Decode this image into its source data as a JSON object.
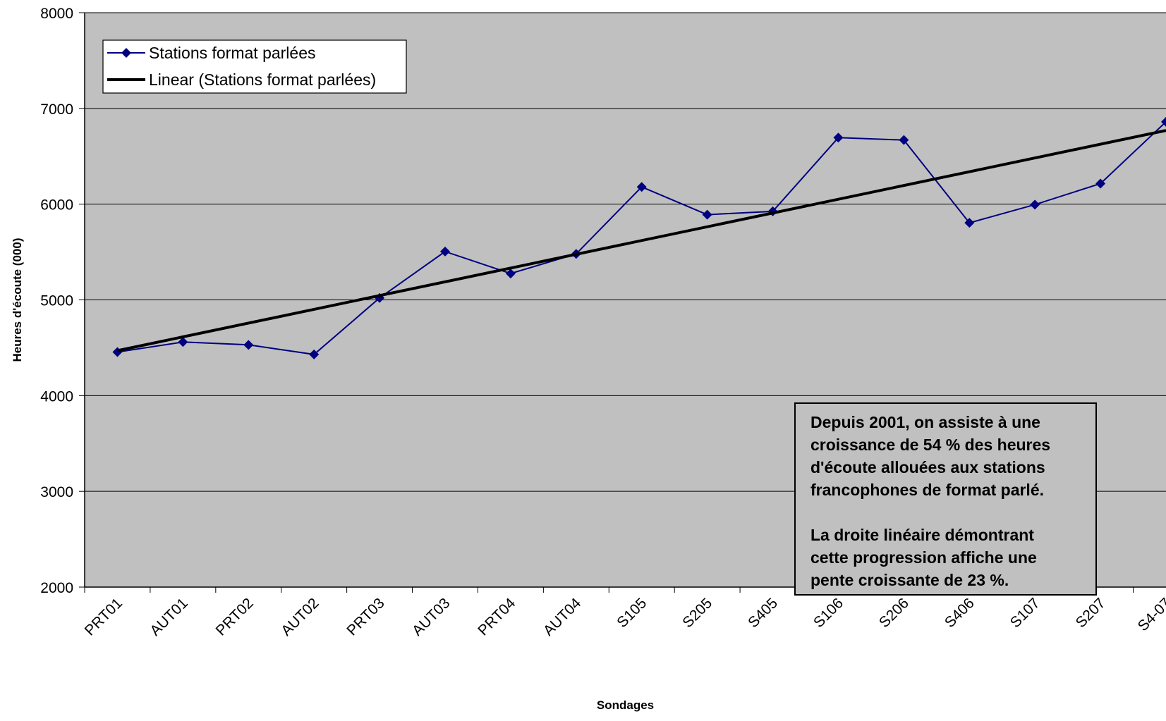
{
  "chart_data": {
    "type": "line",
    "title": "",
    "xlabel": "Sondages",
    "ylabel": "Heures d'écoute (000)",
    "ylim": [
      2000,
      8000
    ],
    "yticks": [
      2000,
      3000,
      4000,
      5000,
      6000,
      7000,
      8000
    ],
    "grid": "horizontal",
    "legend_position": "top-left",
    "categories": [
      "PRT01",
      "AUT01",
      "PRT02",
      "AUT02",
      "PRT03",
      "AUT03",
      "PRT04",
      "AUT04",
      "S105",
      "S205",
      "S405",
      "S106",
      "S206",
      "S406",
      "S107",
      "S207",
      "S4-07"
    ],
    "series": [
      {
        "name": "Stations format parlées",
        "color": "#000080",
        "marker": "diamond",
        "values": [
          4455,
          4560,
          4530,
          4430,
          5020,
          5505,
          5275,
          5480,
          6180,
          5890,
          5925,
          6695,
          6670,
          5805,
          5995,
          6215,
          6860
        ]
      }
    ],
    "trendline": {
      "name": "Linear (Stations format parlées)",
      "type": "linear",
      "color": "#000000",
      "start": 4470,
      "end": 6770
    },
    "annotation": {
      "lines": [
        "Depuis 2001, on assiste à une",
        "croissance de 54 % des heures",
        "d'écoute allouées aux stations",
        "francophones de format parlé.",
        "",
        "La droite linéaire démontrant",
        "cette progression affiche une",
        "pente croissante de 23 %."
      ]
    },
    "colors": {
      "plot_background": "#c0c0c0",
      "gridline": "#000000",
      "axis": "#000000"
    }
  }
}
